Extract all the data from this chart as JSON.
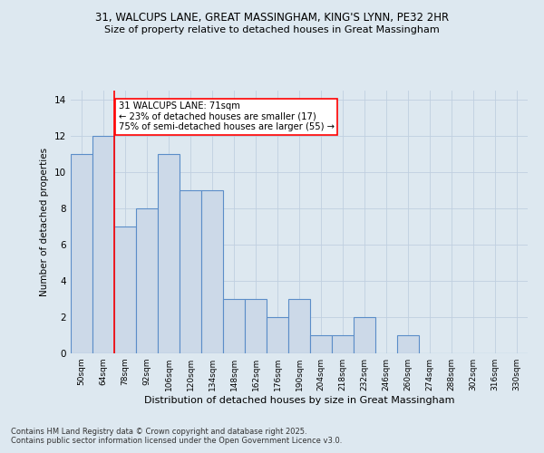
{
  "title1": "31, WALCUPS LANE, GREAT MASSINGHAM, KING'S LYNN, PE32 2HR",
  "title2": "Size of property relative to detached houses in Great Massingham",
  "xlabel": "Distribution of detached houses by size in Great Massingham",
  "ylabel": "Number of detached properties",
  "categories": [
    "50sqm",
    "64sqm",
    "78sqm",
    "92sqm",
    "106sqm",
    "120sqm",
    "134sqm",
    "148sqm",
    "162sqm",
    "176sqm",
    "190sqm",
    "204sqm",
    "218sqm",
    "232sqm",
    "246sqm",
    "260sqm",
    "274sqm",
    "288sqm",
    "302sqm",
    "316sqm",
    "330sqm"
  ],
  "values": [
    11,
    12,
    7,
    8,
    11,
    9,
    9,
    3,
    3,
    2,
    3,
    1,
    1,
    2,
    0,
    1,
    0,
    0,
    0,
    0,
    0
  ],
  "bar_color": "#ccd9e8",
  "bar_edge_color": "#5b8dc8",
  "bar_linewidth": 0.8,
  "vline_color": "red",
  "vline_linewidth": 1.2,
  "vline_xindex": 1,
  "annotation_text": "31 WALCUPS LANE: 71sqm\n← 23% of detached houses are smaller (17)\n75% of semi-detached houses are larger (55) →",
  "annotation_box_color": "white",
  "annotation_box_edge": "red",
  "ylim": [
    0,
    14.5
  ],
  "yticks": [
    0,
    2,
    4,
    6,
    8,
    10,
    12,
    14
  ],
  "grid_color": "#c0cfe0",
  "background_color": "#dde8f0",
  "footnote1": "Contains HM Land Registry data © Crown copyright and database right 2025.",
  "footnote2": "Contains public sector information licensed under the Open Government Licence v3.0."
}
